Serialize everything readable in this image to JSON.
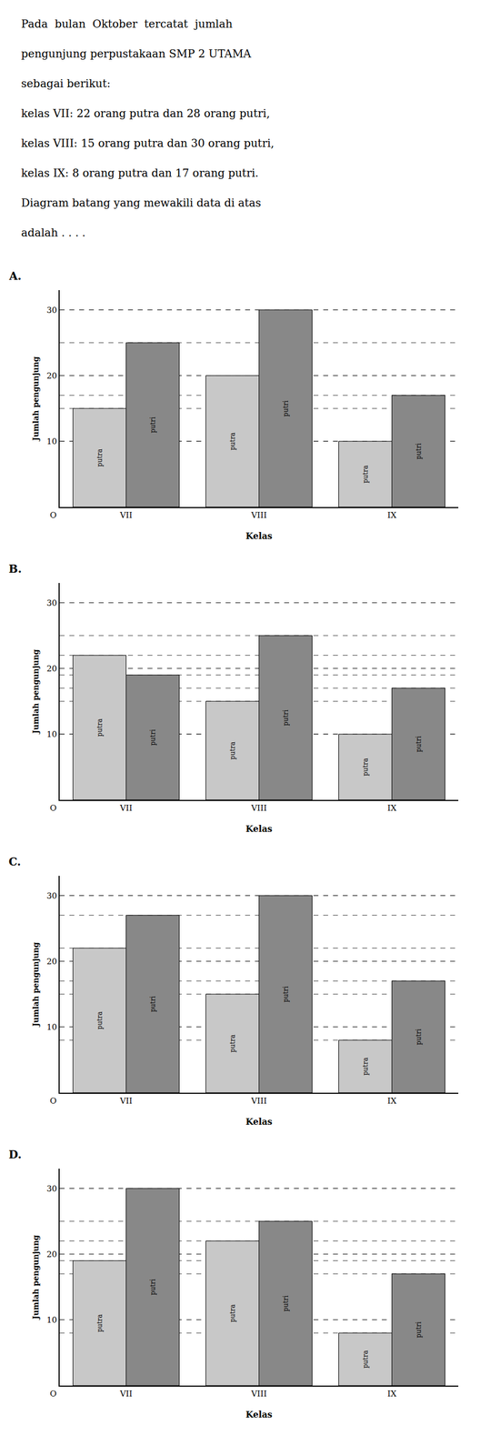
{
  "chart_data": [
    {
      "type": "bar",
      "title": "A.",
      "subtitle": [
        "Pada  bulan  Oktober  tercatat  jumlah",
        "pengunjung perpustakaan SMP 2 UTAMA",
        "sebagai berikut:",
        "kelas VII: 22 orang putra dan 28 orang putri,",
        "kelas VIII: 15 orang putra dan 30 orang putri,",
        "kelas IX: 8 orang putra dan 17 orang putri.",
        "Diagram batang yang mewakili data di atas",
        "adalah . . . ."
      ],
      "categories": [
        "VII",
        "VIII",
        "IX"
      ],
      "series": [
        {
          "name": "putra",
          "color": "#c8c8c8",
          "values": [
            15,
            20,
            10
          ]
        },
        {
          "name": "putri",
          "color": "#888888",
          "values": [
            25,
            30,
            17
          ]
        }
      ],
      "xlabel": "Kelas",
      "ylabel": "Jumlah pengunjung",
      "ylim": [
        0,
        33
      ],
      "yticks": [
        10,
        20,
        30
      ],
      "grid": true,
      "annotations": [
        "O"
      ]
    },
    {
      "type": "bar",
      "title": "B.",
      "categories": [
        "VII",
        "VIII",
        "IX"
      ],
      "series": [
        {
          "name": "putra",
          "color": "#c8c8c8",
          "values": [
            22,
            15,
            10
          ]
        },
        {
          "name": "putri",
          "color": "#888888",
          "values": [
            19,
            25,
            17
          ]
        }
      ],
      "xlabel": "Kelas",
      "ylabel": "Jumlah pengunjung",
      "ylim": [
        0,
        33
      ],
      "yticks": [
        10,
        20,
        30
      ],
      "grid": true,
      "annotations": [
        "O"
      ]
    },
    {
      "type": "bar",
      "title": "C.",
      "categories": [
        "VII",
        "VIII",
        "IX"
      ],
      "series": [
        {
          "name": "putra",
          "color": "#c8c8c8",
          "values": [
            22,
            15,
            8
          ]
        },
        {
          "name": "putri",
          "color": "#888888",
          "values": [
            27,
            30,
            17
          ]
        }
      ],
      "xlabel": "Kelas",
      "ylabel": "Jumlah pengunjung",
      "ylim": [
        0,
        33
      ],
      "yticks": [
        10,
        20,
        30
      ],
      "grid": true,
      "annotations": [
        "O"
      ]
    },
    {
      "type": "bar",
      "title": "D.",
      "categories": [
        "VII",
        "VIII",
        "IX"
      ],
      "series": [
        {
          "name": "putra",
          "color": "#c8c8c8",
          "values": [
            19,
            22,
            8
          ]
        },
        {
          "name": "putri",
          "color": "#888888",
          "values": [
            30,
            25,
            17
          ]
        }
      ],
      "xlabel": "Kelas",
      "ylabel": "Jumlah pengunjung",
      "ylim": [
        0,
        33
      ],
      "yticks": [
        10,
        20,
        30
      ],
      "grid": true,
      "annotations": [
        "O"
      ]
    }
  ]
}
